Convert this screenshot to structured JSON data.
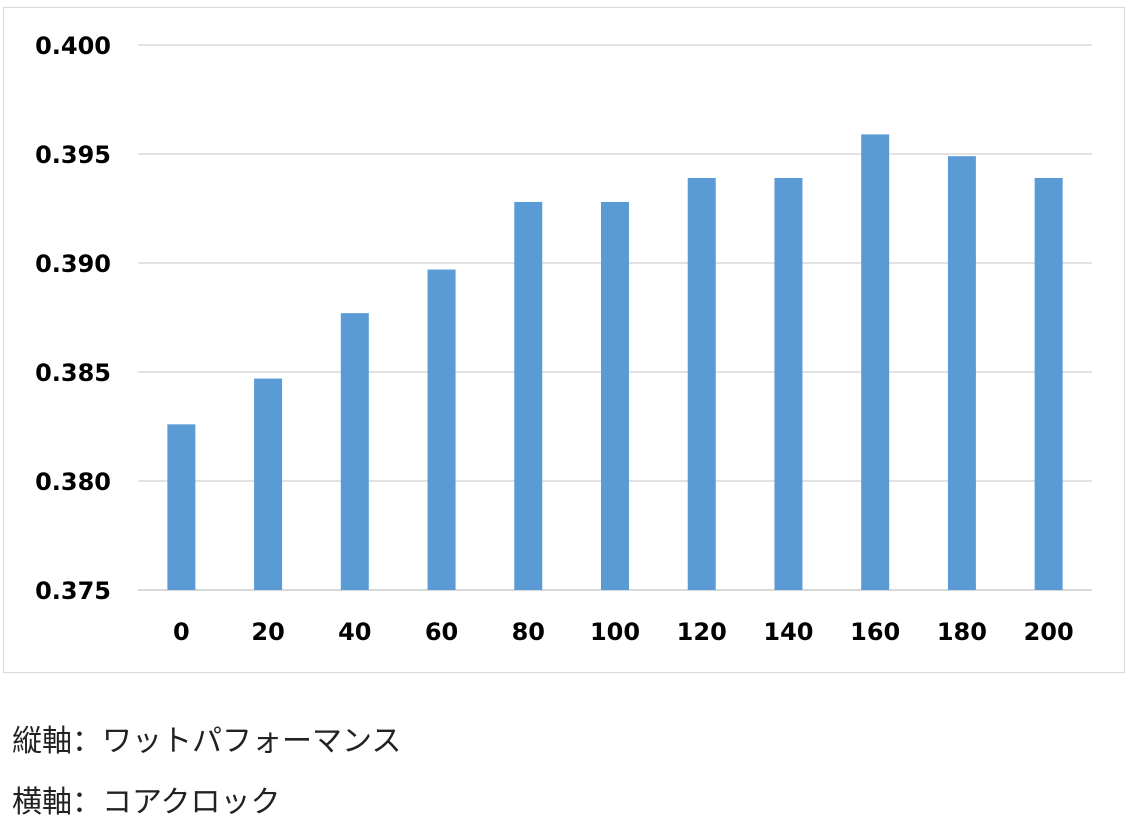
{
  "chart_data": {
    "type": "bar",
    "categories": [
      "0",
      "20",
      "40",
      "60",
      "80",
      "100",
      "120",
      "140",
      "160",
      "180",
      "200"
    ],
    "values": [
      0.3826,
      0.3847,
      0.3877,
      0.3897,
      0.3928,
      0.3928,
      0.3939,
      0.3939,
      0.3959,
      0.3949,
      0.3939
    ],
    "ylim": [
      0.375,
      0.4
    ],
    "yticks": [
      "0.375",
      "0.380",
      "0.385",
      "0.390",
      "0.395",
      "0.400"
    ],
    "title": "",
    "xlabel": "",
    "ylabel": "",
    "grid": true,
    "legend": "none",
    "bar_color": "#5b9bd5",
    "grid_color": "#d9d9d9"
  },
  "captions": {
    "vertical_axis": "縦軸：ワットパフォーマンス",
    "horizontal_axis": "横軸：コアクロック"
  }
}
